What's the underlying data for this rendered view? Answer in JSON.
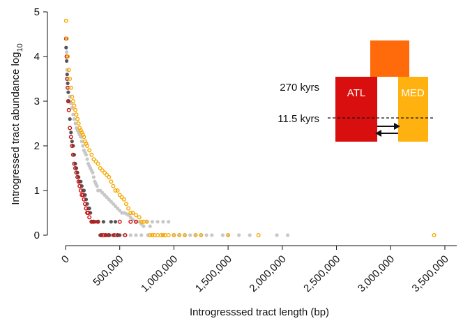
{
  "chart_data": {
    "type": "scatter",
    "xlabel": "Introgresssed tract length (bp)",
    "ylabel": "Introgressed tract abundance log",
    "ylabel_sub": "10",
    "xlim": [
      0,
      3650000
    ],
    "ylim": [
      -0.1,
      5.0
    ],
    "x_ticks": [
      0,
      500000,
      1000000,
      1500000,
      2000000,
      2500000,
      3000000,
      3500000
    ],
    "x_tick_labels": [
      "0",
      "500,000",
      "1,000,000",
      "1,500,000",
      "2,000,000",
      "2,500,000",
      "3,000,000",
      "3,500,000"
    ],
    "y_ticks": [
      0,
      1,
      2,
      3,
      4,
      5
    ],
    "y_tick_labels": [
      "0",
      "1",
      "2",
      "3",
      "4",
      "5"
    ],
    "grid": false,
    "legend": "none",
    "colors": {
      "grey_light": "#c8c8c8",
      "grey_dark": "#555555",
      "red": "#cc1010",
      "orange": "#f7a800",
      "atl": "#d90f0f",
      "med": "#ffb20f",
      "ancestral": "#ff6a0a"
    },
    "series": [
      {
        "style": "filled-light-grey",
        "x": [
          5000,
          10000,
          15000,
          20000,
          30000,
          40000,
          50000,
          60000,
          70000,
          80000,
          90000,
          100000,
          110000,
          120000,
          130000,
          140000,
          150000,
          160000,
          170000,
          180000,
          190000,
          200000,
          210000,
          220000,
          230000,
          240000,
          250000,
          260000,
          270000,
          280000,
          290000,
          300000,
          320000,
          340000,
          360000,
          380000,
          400000,
          420000,
          440000,
          460000,
          480000,
          500000,
          520000,
          540000,
          560000,
          580000,
          600000,
          620000,
          650000,
          680000,
          700000,
          720000,
          750000,
          780000,
          800000,
          850000,
          900000,
          950000,
          1000000,
          1050000,
          1100000,
          1150000,
          1200000,
          1250000,
          1300000,
          1350000,
          1450000,
          1500000,
          1600000,
          1700000,
          1950000,
          2050000,
          320000,
          380000,
          420000,
          480000,
          540000,
          600000,
          650000,
          700000,
          760000,
          900000
        ],
        "y": [
          4.4,
          4.1,
          3.7,
          3.5,
          3.3,
          3.1,
          2.95,
          2.85,
          2.7,
          2.6,
          2.5,
          2.4,
          2.35,
          2.3,
          2.25,
          2.2,
          2.1,
          2.0,
          1.9,
          1.85,
          1.8,
          1.7,
          1.6,
          1.55,
          1.5,
          1.45,
          1.4,
          1.3,
          1.2,
          1.15,
          1.1,
          1.0,
          1.0,
          0.95,
          0.9,
          0.85,
          0.8,
          0.75,
          0.7,
          0.65,
          0.6,
          0.55,
          0.5,
          0.5,
          0.48,
          0.45,
          0.4,
          0.35,
          0.3,
          0.3,
          0.25,
          0.2,
          0.3,
          0.2,
          0.3,
          0.3,
          0.3,
          0.3,
          0.0,
          0.0,
          0.0,
          0.0,
          0.0,
          0.0,
          0.0,
          0.0,
          0.0,
          0.0,
          0.0,
          0.0,
          0.0,
          0.0,
          0.0,
          0.0,
          0.0,
          0.0,
          0.0,
          0.0,
          0.0,
          0.0,
          0.0,
          0.0
        ]
      },
      {
        "style": "filled-dark-grey",
        "x": [
          5000,
          10000,
          15000,
          20000,
          25000,
          30000,
          40000,
          50000,
          60000,
          70000,
          80000,
          90000,
          100000,
          110000,
          120000,
          130000,
          140000,
          150000,
          160000,
          170000,
          180000,
          190000,
          200000,
          210000,
          220000,
          230000,
          240000,
          250000,
          260000,
          280000,
          300000,
          320000,
          350000,
          380000,
          400000,
          420000,
          440000,
          460000,
          480000,
          500000
        ],
        "y": [
          4.2,
          3.9,
          3.6,
          3.4,
          3.2,
          3.0,
          2.6,
          2.3,
          2.1,
          2.0,
          1.8,
          1.6,
          1.5,
          1.4,
          1.3,
          1.2,
          1.2,
          1.1,
          1.0,
          1.0,
          0.9,
          0.8,
          0.7,
          0.6,
          0.6,
          0.5,
          0.3,
          0.3,
          0.3,
          0.3,
          0.3,
          0.0,
          0.3,
          0.0,
          0.0,
          0.3,
          0.0,
          0.3,
          0.0,
          0.0
        ]
      },
      {
        "style": "open-red",
        "x": [
          5000,
          10000,
          15000,
          20000,
          25000,
          30000,
          40000,
          50000,
          60000,
          70000,
          80000,
          90000,
          100000,
          110000,
          120000,
          130000,
          140000,
          150000,
          160000,
          170000,
          180000,
          190000,
          200000,
          210000,
          220000,
          240000,
          260000,
          300000,
          330000,
          350000,
          370000,
          400000,
          450000,
          480000,
          500000,
          550000,
          600000,
          650000
        ],
        "y": [
          4.4,
          4.0,
          3.5,
          3.3,
          3.0,
          2.8,
          2.4,
          2.2,
          2.0,
          1.8,
          1.6,
          1.5,
          1.4,
          1.3,
          1.2,
          1.1,
          1.0,
          0.9,
          0.9,
          0.8,
          0.7,
          0.6,
          0.5,
          0.5,
          0.4,
          0.3,
          0.3,
          0.3,
          0.0,
          0.0,
          0.0,
          0.0,
          0.0,
          0.0,
          0.3,
          0.0,
          0.3,
          0.3
        ]
      },
      {
        "style": "open-orange",
        "x": [
          5000,
          10000,
          20000,
          30000,
          40000,
          50000,
          60000,
          70000,
          80000,
          90000,
          100000,
          110000,
          120000,
          130000,
          140000,
          150000,
          160000,
          170000,
          180000,
          190000,
          200000,
          220000,
          240000,
          260000,
          280000,
          300000,
          320000,
          340000,
          360000,
          380000,
          400000,
          420000,
          440000,
          460000,
          480000,
          500000,
          520000,
          540000,
          560000,
          580000,
          600000,
          620000,
          650000,
          680000,
          700000,
          720000,
          750000,
          780000,
          800000,
          820000,
          850000,
          880000,
          900000,
          920000,
          950000,
          1000000,
          1050000,
          1100000,
          1200000,
          1250000,
          1500000,
          1780000,
          3400000
        ],
        "y": [
          4.8,
          4.4,
          4.0,
          3.7,
          3.5,
          3.3,
          3.1,
          3.0,
          2.9,
          2.8,
          2.7,
          2.6,
          2.5,
          2.4,
          2.35,
          2.3,
          2.25,
          2.2,
          2.1,
          2.05,
          2.0,
          1.9,
          1.8,
          1.7,
          1.65,
          1.6,
          1.5,
          1.45,
          1.4,
          1.35,
          1.3,
          1.2,
          1.1,
          1.0,
          1.0,
          0.9,
          0.85,
          0.8,
          0.7,
          0.6,
          0.5,
          0.5,
          0.45,
          0.4,
          0.3,
          0.3,
          0.3,
          0.0,
          0.0,
          0.0,
          0.0,
          0.0,
          0.0,
          0.0,
          0.0,
          0.0,
          0.0,
          0.0,
          0.0,
          0.0,
          0.0,
          0.0,
          0.0
        ]
      }
    ],
    "inset": {
      "labels": {
        "atl": "ATL",
        "med": "MED"
      },
      "annotations": [
        "270 kyrs",
        "11.5 kyrs"
      ]
    }
  }
}
